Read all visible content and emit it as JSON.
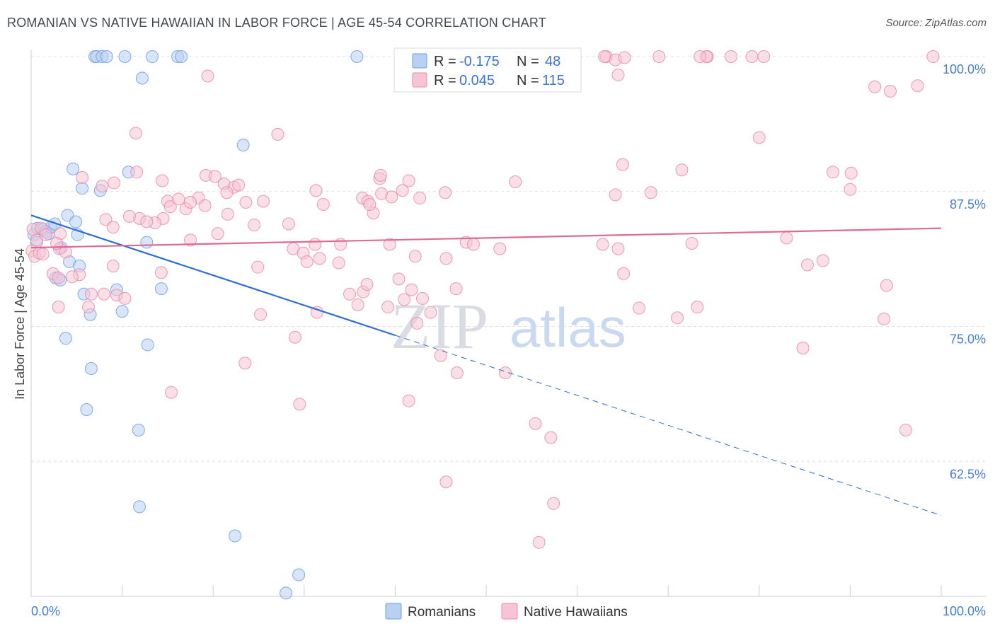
{
  "chart_data": {
    "type": "scatter",
    "title": "ROMANIAN VS NATIVE HAWAIIAN IN LABOR FORCE | AGE 45-54 CORRELATION CHART",
    "source": "Source: ZipAtlas.com",
    "xlabel": "",
    "ylabel": "In Labor Force | Age 45-54",
    "xlim": [
      0,
      100
    ],
    "ylim": [
      50,
      100.9
    ],
    "x_tick_labels": [
      "0.0%",
      "100.0%"
    ],
    "y_ticks": [
      {
        "value": 100.0,
        "label": "100.0%"
      },
      {
        "value": 87.5,
        "label": "87.5%"
      },
      {
        "value": 75.0,
        "label": "75.0%"
      },
      {
        "value": 62.5,
        "label": "62.5%"
      }
    ],
    "watermark": {
      "part1": "ZIP",
      "part2": "atlas"
    },
    "legend": {
      "r_label": "R =",
      "n_label": "N =",
      "rows": [
        {
          "r": "-0.175",
          "n": "48"
        },
        {
          "r": "0.045",
          "n": "115"
        }
      ]
    },
    "series": [
      {
        "name": "Romanians",
        "color": "#6b9de8",
        "fill": "#b9d0f3",
        "trend": {
          "x0": 0,
          "y0": 85.3,
          "x1": 100,
          "y1": 57.5,
          "solid_until": 40
        },
        "points": [
          [
            7.0,
            100
          ],
          [
            7.2,
            100
          ],
          [
            7.8,
            100
          ],
          [
            8.3,
            100
          ],
          [
            10.3,
            100
          ],
          [
            13.3,
            100
          ],
          [
            16.1,
            100
          ],
          [
            16.5,
            100
          ],
          [
            35.8,
            100
          ],
          [
            12.2,
            98
          ],
          [
            23.3,
            91.8
          ],
          [
            4.6,
            89.6
          ],
          [
            10.7,
            89.3
          ],
          [
            5.6,
            87.8
          ],
          [
            7.6,
            87.6
          ],
          [
            4.0,
            85.3
          ],
          [
            0.3,
            83.5
          ],
          [
            0.7,
            84.1
          ],
          [
            1.3,
            84.0
          ],
          [
            1.6,
            83.8
          ],
          [
            1.9,
            83.6
          ],
          [
            2.2,
            84.2
          ],
          [
            2.6,
            84.5
          ],
          [
            4.9,
            84.7
          ],
          [
            5.1,
            83.5
          ],
          [
            12.7,
            82.8
          ],
          [
            0.6,
            82.8
          ],
          [
            3.3,
            82.3
          ],
          [
            4.2,
            81.0
          ],
          [
            5.3,
            80.6
          ],
          [
            2.7,
            79.5
          ],
          [
            3.2,
            79.3
          ],
          [
            9.4,
            78.4
          ],
          [
            14.3,
            78.5
          ],
          [
            5.8,
            78.0
          ],
          [
            10.0,
            76.4
          ],
          [
            6.5,
            76.1
          ],
          [
            3.8,
            73.9
          ],
          [
            12.8,
            73.3
          ],
          [
            6.6,
            71.1
          ],
          [
            6.1,
            67.3
          ],
          [
            11.8,
            65.4
          ],
          [
            11.9,
            58.3
          ],
          [
            22.4,
            55.6
          ],
          [
            29.4,
            52.0
          ],
          [
            28.0,
            50.3
          ]
        ]
      },
      {
        "name": "Native Hawaiians",
        "color": "#e889a8",
        "fill": "#f6c4d4",
        "trend": {
          "x0": 0,
          "y0": 82.3,
          "x1": 100,
          "y1": 84.1,
          "solid_until": 100
        },
        "points": [
          [
            0.1,
            82.0
          ],
          [
            0.4,
            81.5
          ],
          [
            0.9,
            81.8
          ],
          [
            1.3,
            81.7
          ],
          [
            0.6,
            83.0
          ],
          [
            0.2,
            84.0
          ],
          [
            1.1,
            84.1
          ],
          [
            1.6,
            83.5
          ],
          [
            3.2,
            83.6
          ],
          [
            3.1,
            82.2
          ],
          [
            2.8,
            82.7
          ],
          [
            3.8,
            81.9
          ],
          [
            2.4,
            79.9
          ],
          [
            3.0,
            79.5
          ],
          [
            5.3,
            79.8
          ],
          [
            4.5,
            79.6
          ],
          [
            3.0,
            76.8
          ],
          [
            6.3,
            76.8
          ],
          [
            6.6,
            78.0
          ],
          [
            9.4,
            77.9
          ],
          [
            10.3,
            77.6
          ],
          [
            9.0,
            80.6
          ],
          [
            8.0,
            78.0
          ],
          [
            5.6,
            88.8
          ],
          [
            7.8,
            88.0
          ],
          [
            9.1,
            88.3
          ],
          [
            11.6,
            89.3
          ],
          [
            14.4,
            88.5
          ],
          [
            15.0,
            86.6
          ],
          [
            15.3,
            86.1
          ],
          [
            16.2,
            86.8
          ],
          [
            17.0,
            85.9
          ],
          [
            18.4,
            86.9
          ],
          [
            19.1,
            86.2
          ],
          [
            17.5,
            83.0
          ],
          [
            17.5,
            86.5
          ],
          [
            8.2,
            84.9
          ],
          [
            11.9,
            85.0
          ],
          [
            10.8,
            85.2
          ],
          [
            14.5,
            85.0
          ],
          [
            13.6,
            84.6
          ],
          [
            12.7,
            84.7
          ],
          [
            9.0,
            84.2
          ],
          [
            14.3,
            80.0
          ],
          [
            19.4,
            98.2
          ],
          [
            11.5,
            92.9
          ],
          [
            19.2,
            89.0
          ],
          [
            20.2,
            88.9
          ],
          [
            21.2,
            88.2
          ],
          [
            22.3,
            87.9
          ],
          [
            22.8,
            88.1
          ],
          [
            21.5,
            87.4
          ],
          [
            23.6,
            86.5
          ],
          [
            25.5,
            86.6
          ],
          [
            24.5,
            84.4
          ],
          [
            21.6,
            85.4
          ],
          [
            20.5,
            83.6
          ],
          [
            24.9,
            80.5
          ],
          [
            25.2,
            76.1
          ],
          [
            23.5,
            71.6
          ],
          [
            15.4,
            68.9
          ],
          [
            27.1,
            92.8
          ],
          [
            28.3,
            84.5
          ],
          [
            28.8,
            82.2
          ],
          [
            29.9,
            81.8
          ],
          [
            30.3,
            81.0
          ],
          [
            31.3,
            87.6
          ],
          [
            32.1,
            86.3
          ],
          [
            31.2,
            82.6
          ],
          [
            31.7,
            81.3
          ],
          [
            34.0,
            82.6
          ],
          [
            33.8,
            80.9
          ],
          [
            35.0,
            78.0
          ],
          [
            35.9,
            77.0
          ],
          [
            36.5,
            78.2
          ],
          [
            37.6,
            85.5
          ],
          [
            38.3,
            88.7
          ],
          [
            38.4,
            89.0
          ],
          [
            36.4,
            86.9
          ],
          [
            38.5,
            87.3
          ],
          [
            39.6,
            87.0
          ],
          [
            37.0,
            86.6
          ],
          [
            39.4,
            82.6
          ],
          [
            37.2,
            86.3
          ],
          [
            29.0,
            74.0
          ],
          [
            29.5,
            67.8
          ],
          [
            31.4,
            76.3
          ],
          [
            39.2,
            76.8
          ],
          [
            40.8,
            87.6
          ],
          [
            41.5,
            88.5
          ],
          [
            42.7,
            86.9
          ],
          [
            45.5,
            87.4
          ],
          [
            46.7,
            78.5
          ],
          [
            47.8,
            82.8
          ],
          [
            40.4,
            79.4
          ],
          [
            42.2,
            81.5
          ],
          [
            36.9,
            78.9
          ],
          [
            41.8,
            78.4
          ],
          [
            41.0,
            77.5
          ],
          [
            43.9,
            76.3
          ],
          [
            42.4,
            75.3
          ],
          [
            45.0,
            72.3
          ],
          [
            46.8,
            70.7
          ],
          [
            52.1,
            70.7
          ],
          [
            55.4,
            66.0
          ],
          [
            57.1,
            64.7
          ],
          [
            45.6,
            60.6
          ],
          [
            57.4,
            58.6
          ],
          [
            55.8,
            55.0
          ],
          [
            41.5,
            68.1
          ],
          [
            45.6,
            81.3
          ],
          [
            43.0,
            77.6
          ],
          [
            53.2,
            88.4
          ],
          [
            48.6,
            82.6
          ],
          [
            51.5,
            82.2
          ],
          [
            62.8,
            82.6
          ],
          [
            64.2,
            87.2
          ],
          [
            64.5,
            82.2
          ],
          [
            65.1,
            79.9
          ],
          [
            68.1,
            87.4
          ],
          [
            71.5,
            89.5
          ],
          [
            80.0,
            92.5
          ],
          [
            83.0,
            83.2
          ],
          [
            85.3,
            80.7
          ],
          [
            87.0,
            81.1
          ],
          [
            88.1,
            89.3
          ],
          [
            90.0,
            87.7
          ],
          [
            94.0,
            78.8
          ],
          [
            99.1,
            100
          ],
          [
            90.1,
            89.2
          ],
          [
            92.7,
            97.2
          ],
          [
            94.4,
            96.8
          ],
          [
            97.4,
            97.3
          ],
          [
            55.1,
            100
          ],
          [
            59.0,
            100
          ],
          [
            63.2,
            100
          ],
          [
            64.5,
            98.3
          ],
          [
            69.0,
            100
          ],
          [
            74.3,
            100
          ],
          [
            63.0,
            100
          ],
          [
            64.2,
            99.7
          ],
          [
            65.2,
            99.9
          ],
          [
            74.2,
            100
          ],
          [
            80.5,
            100
          ],
          [
            72.6,
            82.7
          ],
          [
            65.0,
            90.0
          ],
          [
            66.8,
            76.7
          ],
          [
            71.0,
            75.8
          ],
          [
            84.8,
            73.0
          ],
          [
            93.7,
            75.7
          ],
          [
            96.1,
            65.4
          ],
          [
            79.2,
            100
          ],
          [
            76.9,
            100
          ],
          [
            73.5,
            100
          ],
          [
            73.2,
            76.8
          ]
        ]
      }
    ]
  }
}
